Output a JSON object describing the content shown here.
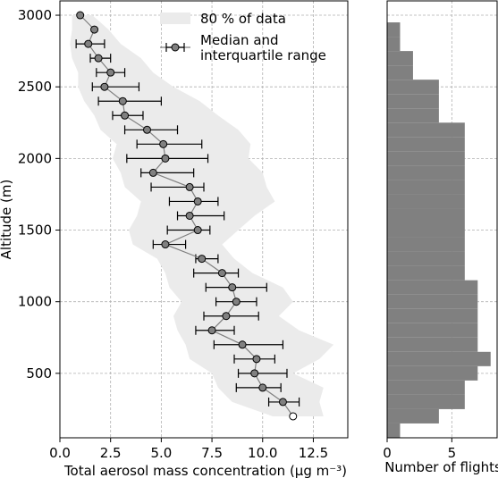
{
  "chart_data": [
    {
      "type": "line",
      "xlabel": "Total aerosol mass concentration (μg m⁻³)",
      "ylabel": "Altitude (m)",
      "xlim": [
        0,
        14.2
      ],
      "ylim": [
        50,
        3100
      ],
      "x_ticks": [
        "0.0",
        "2.5",
        "5.0",
        "7.5",
        "10.0",
        "12.5"
      ],
      "y_ticks": [
        "500",
        "1000",
        "1500",
        "2000",
        "2500",
        "3000"
      ],
      "grid": true,
      "legend_position": "top-right",
      "legend": {
        "band_label": "80 % of data",
        "median_label_line1": "Median and",
        "median_label_line2": "interquartile range"
      },
      "series": [
        {
          "name": "Median and interquartile range",
          "points": [
            {
              "altitude": 200,
              "median": 11.5,
              "q1": 11.5,
              "q3": 11.5,
              "open": true
            },
            {
              "altitude": 300,
              "median": 11.0,
              "q1": 10.3,
              "q3": 11.8
            },
            {
              "altitude": 400,
              "median": 10.0,
              "q1": 8.7,
              "q3": 10.9
            },
            {
              "altitude": 500,
              "median": 9.6,
              "q1": 8.8,
              "q3": 11.2
            },
            {
              "altitude": 600,
              "median": 9.7,
              "q1": 8.6,
              "q3": 10.6
            },
            {
              "altitude": 700,
              "median": 9.0,
              "q1": 7.6,
              "q3": 11.0
            },
            {
              "altitude": 800,
              "median": 7.5,
              "q1": 6.7,
              "q3": 8.6
            },
            {
              "altitude": 900,
              "median": 8.2,
              "q1": 7.1,
              "q3": 9.8
            },
            {
              "altitude": 1000,
              "median": 8.7,
              "q1": 7.7,
              "q3": 9.7
            },
            {
              "altitude": 1100,
              "median": 8.5,
              "q1": 7.2,
              "q3": 10.2
            },
            {
              "altitude": 1200,
              "median": 8.0,
              "q1": 6.6,
              "q3": 8.8
            },
            {
              "altitude": 1300,
              "median": 7.0,
              "q1": 6.7,
              "q3": 7.8
            },
            {
              "altitude": 1400,
              "median": 5.2,
              "q1": 4.6,
              "q3": 6.2
            },
            {
              "altitude": 1500,
              "median": 6.8,
              "q1": 5.3,
              "q3": 7.4
            },
            {
              "altitude": 1600,
              "median": 6.4,
              "q1": 5.8,
              "q3": 8.1
            },
            {
              "altitude": 1700,
              "median": 6.8,
              "q1": 5.4,
              "q3": 7.8
            },
            {
              "altitude": 1800,
              "median": 6.4,
              "q1": 4.5,
              "q3": 7.1
            },
            {
              "altitude": 1900,
              "median": 4.6,
              "q1": 4.0,
              "q3": 6.6
            },
            {
              "altitude": 2000,
              "median": 5.2,
              "q1": 3.3,
              "q3": 7.3
            },
            {
              "altitude": 2100,
              "median": 5.1,
              "q1": 3.8,
              "q3": 7.0
            },
            {
              "altitude": 2200,
              "median": 4.3,
              "q1": 3.2,
              "q3": 5.8
            },
            {
              "altitude": 2300,
              "median": 3.2,
              "q1": 2.6,
              "q3": 4.1
            },
            {
              "altitude": 2400,
              "median": 3.1,
              "q1": 1.9,
              "q3": 5.0
            },
            {
              "altitude": 2500,
              "median": 2.2,
              "q1": 1.6,
              "q3": 3.9
            },
            {
              "altitude": 2600,
              "median": 2.5,
              "q1": 1.8,
              "q3": 3.2
            },
            {
              "altitude": 2700,
              "median": 1.9,
              "q1": 1.5,
              "q3": 2.5
            },
            {
              "altitude": 2800,
              "median": 1.4,
              "q1": 0.8,
              "q3": 2.2
            },
            {
              "altitude": 2900,
              "median": 1.7,
              "q1": 1.7,
              "q3": 1.7
            },
            {
              "altitude": 3000,
              "median": 1.0,
              "q1": 1.0,
              "q3": 1.0
            }
          ]
        },
        {
          "name": "80 % of data",
          "band": [
            {
              "altitude": 200,
              "low": 10.5,
              "high": 13.0
            },
            {
              "altitude": 300,
              "low": 8.5,
              "high": 12.8
            },
            {
              "altitude": 400,
              "low": 7.8,
              "high": 13.0
            },
            {
              "altitude": 500,
              "low": 7.5,
              "high": 11.5
            },
            {
              "altitude": 600,
              "low": 6.4,
              "high": 12.8
            },
            {
              "altitude": 700,
              "low": 6.2,
              "high": 13.5
            },
            {
              "altitude": 800,
              "low": 5.8,
              "high": 11.8
            },
            {
              "altitude": 900,
              "low": 5.6,
              "high": 10.8
            },
            {
              "altitude": 1000,
              "low": 6.0,
              "high": 11.5
            },
            {
              "altitude": 1100,
              "low": 5.4,
              "high": 11.0
            },
            {
              "altitude": 1200,
              "low": 5.2,
              "high": 9.5
            },
            {
              "altitude": 1300,
              "low": 4.8,
              "high": 8.6
            },
            {
              "altitude": 1400,
              "low": 3.6,
              "high": 8.0
            },
            {
              "altitude": 1500,
              "low": 3.4,
              "high": 8.8
            },
            {
              "altitude": 1600,
              "low": 3.8,
              "high": 9.6
            },
            {
              "altitude": 1700,
              "low": 4.0,
              "high": 10.6
            },
            {
              "altitude": 1800,
              "low": 3.2,
              "high": 10.2
            },
            {
              "altitude": 1900,
              "low": 3.0,
              "high": 10.0
            },
            {
              "altitude": 2000,
              "low": 2.6,
              "high": 9.3
            },
            {
              "altitude": 2100,
              "low": 2.8,
              "high": 9.4
            },
            {
              "altitude": 2200,
              "low": 2.0,
              "high": 8.8
            },
            {
              "altitude": 2300,
              "low": 1.7,
              "high": 7.8
            },
            {
              "altitude": 2400,
              "low": 1.2,
              "high": 6.9
            },
            {
              "altitude": 2500,
              "low": 0.9,
              "high": 5.6
            },
            {
              "altitude": 2600,
              "low": 0.9,
              "high": 4.6
            },
            {
              "altitude": 2700,
              "low": 0.6,
              "high": 4.0
            },
            {
              "altitude": 2800,
              "low": 0.5,
              "high": 3.0
            },
            {
              "altitude": 2900,
              "low": 0.6,
              "high": 2.4
            },
            {
              "altitude": 3000,
              "low": 0.6,
              "high": 1.6
            }
          ]
        }
      ]
    },
    {
      "type": "bar",
      "orientation": "horizontal",
      "xlabel": "Number of flights",
      "xlim": [
        0,
        8.5
      ],
      "x_ticks": [
        "0",
        "5"
      ],
      "ylim": [
        50,
        3100
      ],
      "bars": [
        {
          "altitude": 100,
          "value": 1
        },
        {
          "altitude": 200,
          "value": 4
        },
        {
          "altitude": 300,
          "value": 6
        },
        {
          "altitude": 400,
          "value": 6
        },
        {
          "altitude": 500,
          "value": 7
        },
        {
          "altitude": 600,
          "value": 8
        },
        {
          "altitude": 700,
          "value": 7
        },
        {
          "altitude": 800,
          "value": 7
        },
        {
          "altitude": 900,
          "value": 7
        },
        {
          "altitude": 1000,
          "value": 7
        },
        {
          "altitude": 1100,
          "value": 7
        },
        {
          "altitude": 1200,
          "value": 6
        },
        {
          "altitude": 1300,
          "value": 6
        },
        {
          "altitude": 1400,
          "value": 6
        },
        {
          "altitude": 1500,
          "value": 6
        },
        {
          "altitude": 1600,
          "value": 6
        },
        {
          "altitude": 1700,
          "value": 6
        },
        {
          "altitude": 1800,
          "value": 6
        },
        {
          "altitude": 1900,
          "value": 6
        },
        {
          "altitude": 2000,
          "value": 6
        },
        {
          "altitude": 2100,
          "value": 6
        },
        {
          "altitude": 2200,
          "value": 6
        },
        {
          "altitude": 2300,
          "value": 4
        },
        {
          "altitude": 2400,
          "value": 4
        },
        {
          "altitude": 2500,
          "value": 4
        },
        {
          "altitude": 2600,
          "value": 2
        },
        {
          "altitude": 2700,
          "value": 2
        },
        {
          "altitude": 2800,
          "value": 1
        },
        {
          "altitude": 2900,
          "value": 1
        }
      ]
    }
  ],
  "colors": {
    "band": "#ebebeb",
    "marker_fill": "#808080",
    "line": "#808080",
    "bar": "#808080",
    "grid": "#b0b0b0"
  }
}
